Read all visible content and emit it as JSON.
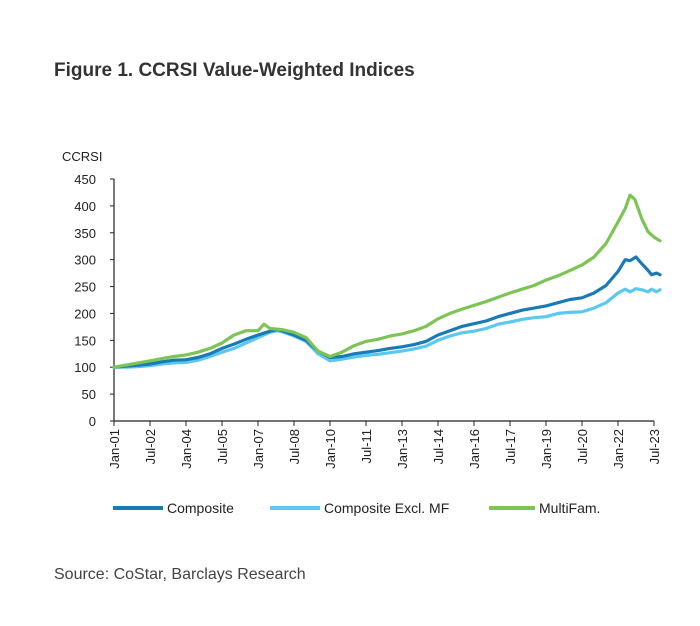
{
  "figure": {
    "title": "Figure 1. CCRSI Value-Weighted Indices",
    "source": "Source: CoStar, Barclays Research"
  },
  "chart_data": {
    "type": "line",
    "ylabel": "CCRSI",
    "xlabel": "",
    "ylim": [
      0,
      450
    ],
    "yticks": [
      0,
      50,
      100,
      150,
      200,
      250,
      300,
      350,
      400,
      450
    ],
    "x_start": "Jan-01",
    "x_end": "Jul-23",
    "xticks": [
      "Jan-01",
      "Jul-02",
      "Jan-04",
      "Jul-05",
      "Jan-07",
      "Jul-08",
      "Jan-10",
      "Jul-11",
      "Jan-13",
      "Jul-14",
      "Jan-16",
      "Jul-17",
      "Jan-19",
      "Jul-20",
      "Jan-22",
      "Jul-23"
    ],
    "legend_position": "bottom",
    "grid": false,
    "series": [
      {
        "name": "Composite",
        "color": "#1a7ab5",
        "points": [
          [
            2001.0,
            100
          ],
          [
            2001.5,
            102
          ],
          [
            2002.0,
            104
          ],
          [
            2002.5,
            106
          ],
          [
            2003.0,
            110
          ],
          [
            2003.5,
            113
          ],
          [
            2004.0,
            114
          ],
          [
            2004.5,
            118
          ],
          [
            2005.0,
            125
          ],
          [
            2005.5,
            135
          ],
          [
            2006.0,
            143
          ],
          [
            2006.5,
            152
          ],
          [
            2007.0,
            160
          ],
          [
            2007.5,
            167
          ],
          [
            2007.8,
            170
          ],
          [
            2008.0,
            168
          ],
          [
            2008.5,
            160
          ],
          [
            2009.0,
            150
          ],
          [
            2009.5,
            130
          ],
          [
            2010.0,
            118
          ],
          [
            2010.5,
            120
          ],
          [
            2011.0,
            125
          ],
          [
            2011.5,
            128
          ],
          [
            2012.0,
            131
          ],
          [
            2012.5,
            135
          ],
          [
            2013.0,
            138
          ],
          [
            2013.5,
            142
          ],
          [
            2014.0,
            148
          ],
          [
            2014.5,
            160
          ],
          [
            2015.0,
            168
          ],
          [
            2015.5,
            176
          ],
          [
            2016.0,
            181
          ],
          [
            2016.5,
            186
          ],
          [
            2017.0,
            194
          ],
          [
            2017.5,
            200
          ],
          [
            2018.0,
            206
          ],
          [
            2018.5,
            210
          ],
          [
            2019.0,
            214
          ],
          [
            2019.5,
            220
          ],
          [
            2020.0,
            226
          ],
          [
            2020.5,
            229
          ],
          [
            2021.0,
            238
          ],
          [
            2021.5,
            252
          ],
          [
            2022.0,
            278
          ],
          [
            2022.3,
            300
          ],
          [
            2022.5,
            298
          ],
          [
            2022.75,
            305
          ],
          [
            2023.0,
            292
          ],
          [
            2023.25,
            280
          ],
          [
            2023.4,
            272
          ],
          [
            2023.6,
            275
          ],
          [
            2023.75,
            272
          ]
        ]
      },
      {
        "name": "Composite Excl. MF",
        "color": "#5bc8f0",
        "points": [
          [
            2001.0,
            100
          ],
          [
            2001.5,
            100
          ],
          [
            2002.0,
            101
          ],
          [
            2002.5,
            103
          ],
          [
            2003.0,
            106
          ],
          [
            2003.5,
            108
          ],
          [
            2004.0,
            109
          ],
          [
            2004.5,
            113
          ],
          [
            2005.0,
            120
          ],
          [
            2005.5,
            128
          ],
          [
            2006.0,
            135
          ],
          [
            2006.5,
            145
          ],
          [
            2007.0,
            155
          ],
          [
            2007.5,
            165
          ],
          [
            2007.8,
            168
          ],
          [
            2008.0,
            166
          ],
          [
            2008.5,
            158
          ],
          [
            2009.0,
            148
          ],
          [
            2009.5,
            125
          ],
          [
            2010.0,
            112
          ],
          [
            2010.5,
            115
          ],
          [
            2011.0,
            119
          ],
          [
            2011.5,
            122
          ],
          [
            2012.0,
            124
          ],
          [
            2012.5,
            127
          ],
          [
            2013.0,
            130
          ],
          [
            2013.5,
            134
          ],
          [
            2014.0,
            139
          ],
          [
            2014.5,
            150
          ],
          [
            2015.0,
            158
          ],
          [
            2015.5,
            164
          ],
          [
            2016.0,
            167
          ],
          [
            2016.5,
            172
          ],
          [
            2017.0,
            180
          ],
          [
            2017.5,
            184
          ],
          [
            2018.0,
            189
          ],
          [
            2018.5,
            192
          ],
          [
            2019.0,
            194
          ],
          [
            2019.5,
            200
          ],
          [
            2020.0,
            202
          ],
          [
            2020.5,
            203
          ],
          [
            2021.0,
            210
          ],
          [
            2021.5,
            220
          ],
          [
            2022.0,
            238
          ],
          [
            2022.3,
            245
          ],
          [
            2022.5,
            240
          ],
          [
            2022.75,
            246
          ],
          [
            2023.0,
            244
          ],
          [
            2023.25,
            240
          ],
          [
            2023.4,
            245
          ],
          [
            2023.6,
            240
          ],
          [
            2023.75,
            244
          ]
        ]
      },
      {
        "name": "MultiFam.",
        "color": "#7cc454",
        "points": [
          [
            2001.0,
            100
          ],
          [
            2001.5,
            104
          ],
          [
            2002.0,
            108
          ],
          [
            2002.5,
            112
          ],
          [
            2003.0,
            116
          ],
          [
            2003.5,
            120
          ],
          [
            2004.0,
            123
          ],
          [
            2004.5,
            128
          ],
          [
            2005.0,
            135
          ],
          [
            2005.5,
            145
          ],
          [
            2006.0,
            160
          ],
          [
            2006.5,
            168
          ],
          [
            2007.0,
            168
          ],
          [
            2007.25,
            180
          ],
          [
            2007.5,
            172
          ],
          [
            2008.0,
            170
          ],
          [
            2008.5,
            165
          ],
          [
            2009.0,
            155
          ],
          [
            2009.5,
            130
          ],
          [
            2010.0,
            120
          ],
          [
            2010.5,
            128
          ],
          [
            2011.0,
            140
          ],
          [
            2011.5,
            148
          ],
          [
            2012.0,
            152
          ],
          [
            2012.5,
            158
          ],
          [
            2013.0,
            162
          ],
          [
            2013.5,
            168
          ],
          [
            2014.0,
            176
          ],
          [
            2014.5,
            190
          ],
          [
            2015.0,
            200
          ],
          [
            2015.5,
            208
          ],
          [
            2016.0,
            215
          ],
          [
            2016.5,
            222
          ],
          [
            2017.0,
            230
          ],
          [
            2017.5,
            238
          ],
          [
            2018.0,
            245
          ],
          [
            2018.5,
            252
          ],
          [
            2019.0,
            262
          ],
          [
            2019.5,
            270
          ],
          [
            2020.0,
            280
          ],
          [
            2020.5,
            290
          ],
          [
            2021.0,
            305
          ],
          [
            2021.5,
            330
          ],
          [
            2022.0,
            370
          ],
          [
            2022.3,
            395
          ],
          [
            2022.5,
            420
          ],
          [
            2022.7,
            412
          ],
          [
            2023.0,
            375
          ],
          [
            2023.25,
            352
          ],
          [
            2023.5,
            342
          ],
          [
            2023.75,
            335
          ]
        ]
      }
    ]
  }
}
